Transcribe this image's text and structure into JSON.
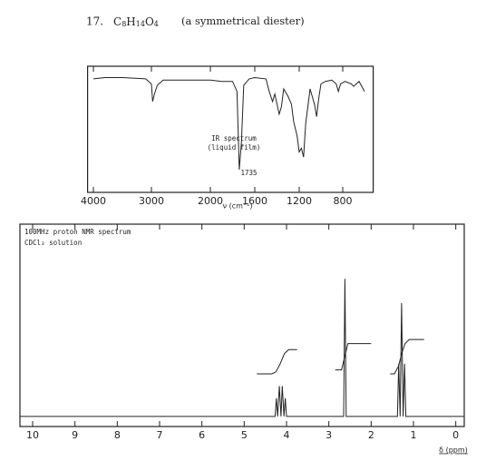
{
  "header": {
    "number": "17.",
    "formula": [
      "C",
      "8",
      "H",
      "14",
      "O",
      "4"
    ],
    "note": "(a symmetrical diester)"
  },
  "chart_data": [
    {
      "type": "line",
      "title": "IR spectrum",
      "subtitle": "(liquid film)",
      "x_label": "ν (cm⁻¹)",
      "annotations": [
        {
          "text": "1735",
          "x": 1735
        }
      ],
      "xlim": [
        4100,
        520
      ],
      "xticks": [
        4000,
        3000,
        2000,
        1600,
        1200,
        800
      ],
      "ylim": [
        0,
        100
      ],
      "x": [
        4000,
        3800,
        3500,
        3100,
        3000,
        2980,
        2950,
        2900,
        2800,
        2500,
        2200,
        2000,
        1900,
        1800,
        1760,
        1740,
        1720,
        1700,
        1650,
        1600,
        1500,
        1470,
        1440,
        1420,
        1400,
        1380,
        1360,
        1340,
        1300,
        1270,
        1250,
        1220,
        1200,
        1180,
        1160,
        1140,
        1100,
        1060,
        1040,
        1020,
        1000,
        960,
        900,
        860,
        840,
        820,
        780,
        720,
        700,
        650,
        600
      ],
      "values": [
        90,
        91,
        91,
        90,
        86,
        72,
        78,
        85,
        89,
        89,
        89,
        89,
        88,
        88,
        80,
        18,
        40,
        85,
        90,
        91,
        90,
        80,
        72,
        78,
        70,
        62,
        68,
        82,
        76,
        70,
        56,
        45,
        32,
        35,
        28,
        55,
        82,
        70,
        60,
        75,
        86,
        88,
        89,
        86,
        80,
        86,
        88,
        86,
        84,
        88,
        80
      ]
    },
    {
      "type": "line",
      "title": "100MHz proton NMR spectrum",
      "subtitle": "CDCl₃ solution",
      "x_label": "δ (ppm)",
      "xlim": [
        10.3,
        -0.2
      ],
      "xticks": [
        10,
        9,
        8,
        7,
        6,
        5,
        4,
        3,
        2,
        1,
        0
      ],
      "ylim": [
        0,
        100
      ],
      "x": [
        10.3,
        4.27,
        4.24,
        4.21,
        4.17,
        4.13,
        4.1,
        4.06,
        4.03,
        4.0,
        2.65,
        2.62,
        2.59,
        1.38,
        1.35,
        1.315,
        1.28,
        1.245,
        1.21,
        1.18,
        -0.2
      ],
      "values": [
        5,
        5,
        14,
        5,
        20,
        5,
        20,
        5,
        14,
        5,
        5,
        73,
        5,
        5,
        31,
        5,
        61,
        5,
        31,
        5,
        5
      ],
      "integrals": [
        {
          "x": [
            4.7,
            4.35,
            4.25,
            4.15,
            4.05,
            3.95,
            3.75
          ],
          "values": [
            26,
            26,
            27,
            31,
            36,
            38,
            38
          ]
        },
        {
          "x": [
            2.85,
            2.7,
            2.62,
            2.55,
            2.0
          ],
          "values": [
            28,
            28,
            35,
            41,
            41
          ]
        },
        {
          "x": [
            1.55,
            1.45,
            1.35,
            1.28,
            1.2,
            1.1,
            0.75
          ],
          "values": [
            26,
            26,
            30,
            36,
            41,
            43,
            43
          ]
        }
      ]
    }
  ]
}
